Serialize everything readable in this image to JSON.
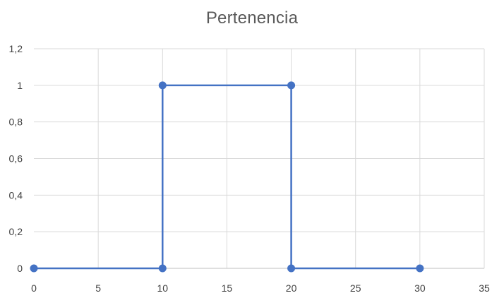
{
  "chart_data": {
    "type": "scatter",
    "title": "Pertenencia",
    "xlabel": "",
    "ylabel": "",
    "xlim": [
      0,
      35
    ],
    "ylim": [
      0,
      1.2
    ],
    "x_ticks": [
      0,
      5,
      10,
      15,
      20,
      25,
      30,
      35
    ],
    "x_tick_labels": [
      "0",
      "5",
      "10",
      "15",
      "20",
      "25",
      "30",
      "35"
    ],
    "y_ticks": [
      0,
      0.2,
      0.4,
      0.6,
      0.8,
      1,
      1.2
    ],
    "y_tick_labels": [
      "0",
      "0,2",
      "0,4",
      "0,6",
      "0,8",
      "1",
      "1,2"
    ],
    "grid": true,
    "legend": "none",
    "series": [
      {
        "x": [
          0,
          10,
          10,
          20,
          20,
          30
        ],
        "y": [
          0,
          0,
          1,
          1,
          0,
          0
        ],
        "color": "#4472c4",
        "markers": true,
        "lines": true
      }
    ]
  }
}
